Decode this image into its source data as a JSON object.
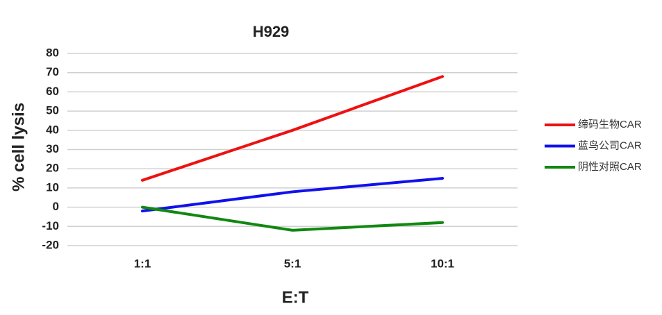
{
  "chart_data": {
    "type": "line",
    "title": "H929",
    "x_label": "E:T",
    "y_label": "% cell lysis",
    "categories": [
      "1:1",
      "5:1",
      "10:1"
    ],
    "series": [
      {
        "name": "缔码生物CAR",
        "color": "#ee1111",
        "values": [
          14,
          40,
          68
        ]
      },
      {
        "name": "蓝鸟公司CAR",
        "color": "#1111ee",
        "values": [
          -2,
          8,
          15
        ]
      },
      {
        "name": "阴性对照CAR",
        "color": "#118811",
        "values": [
          0,
          -12,
          -8
        ]
      }
    ],
    "ylim": [
      -20,
      80
    ],
    "yticks": [
      -20,
      -10,
      0,
      10,
      20,
      30,
      40,
      50,
      60,
      70,
      80
    ],
    "grid": true,
    "legend": "right"
  }
}
